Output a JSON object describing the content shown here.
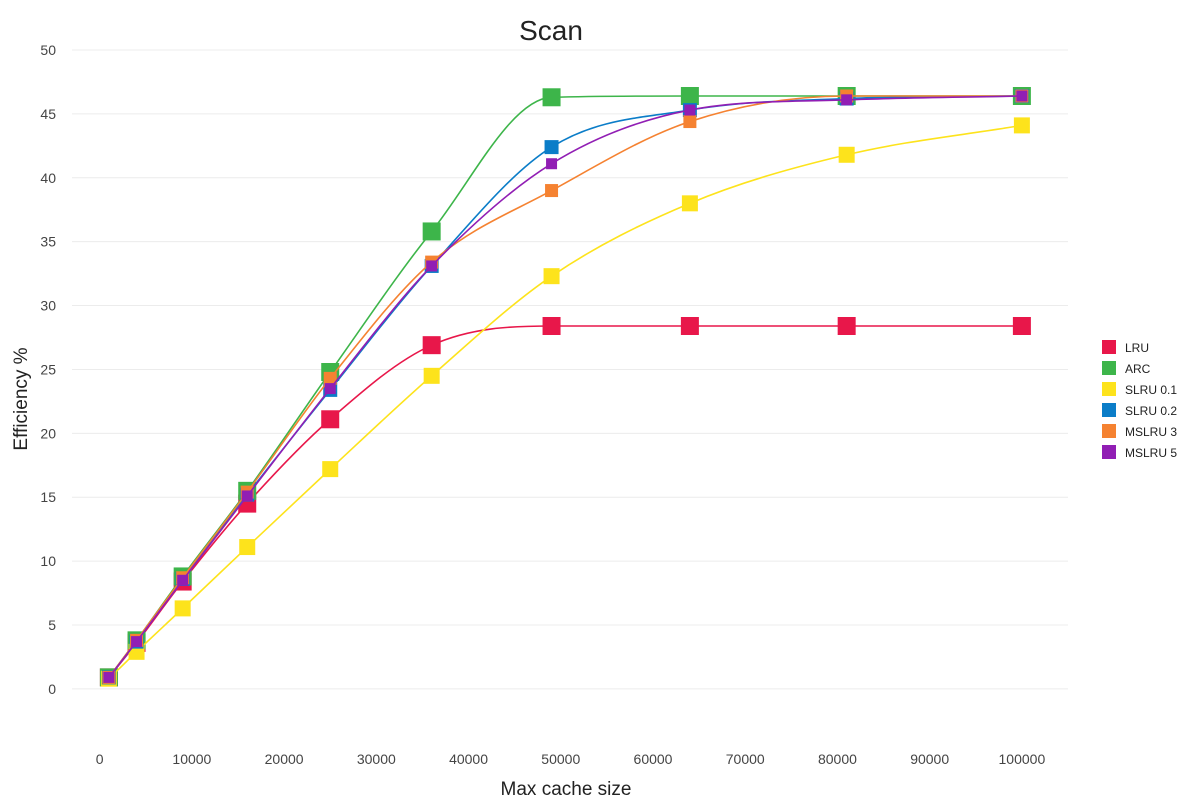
{
  "chart_data": {
    "type": "line",
    "title": "Scan",
    "xlabel": "Max cache size",
    "ylabel": "Efficiency %",
    "xlim": [
      -3000,
      105000
    ],
    "ylim": [
      -4,
      50
    ],
    "x_ticks": [
      0,
      10000,
      20000,
      30000,
      40000,
      50000,
      60000,
      70000,
      80000,
      90000,
      100000
    ],
    "x_tick_labels": [
      "0",
      "10000",
      "20000",
      "30000",
      "40000",
      "50000",
      "60000",
      "70000",
      "80000",
      "90000",
      "100000"
    ],
    "y_ticks": [
      0,
      5,
      10,
      15,
      20,
      25,
      30,
      35,
      40,
      45,
      50
    ],
    "y_tick_labels": [
      "0",
      "5",
      "10",
      "15",
      "20",
      "25",
      "30",
      "35",
      "40",
      "45",
      "50"
    ],
    "grid": "horizontal",
    "legend_position": "right",
    "x": [
      1000,
      4000,
      9000,
      16000,
      25000,
      36000,
      49000,
      64000,
      81000,
      100000
    ],
    "series": [
      {
        "name": "LRU",
        "color": "#e8174a",
        "values": [
          0.9,
          3.6,
          8.4,
          14.5,
          21.1,
          26.9,
          28.4,
          28.4,
          28.4,
          28.4
        ]
      },
      {
        "name": "ARC",
        "color": "#3db54a",
        "values": [
          0.9,
          3.8,
          8.8,
          15.5,
          24.8,
          35.8,
          46.3,
          46.4,
          46.4,
          46.4
        ]
      },
      {
        "name": "SLRU 0.1",
        "color": "#fde31c",
        "values": [
          0.8,
          2.9,
          6.3,
          11.1,
          17.2,
          24.5,
          32.3,
          38.0,
          41.8,
          44.1
        ]
      },
      {
        "name": "SLRU 0.2",
        "color": "#0b7dc8",
        "values": [
          0.9,
          3.7,
          8.6,
          15.2,
          23.4,
          33.1,
          42.4,
          45.3,
          46.2,
          46.4
        ]
      },
      {
        "name": "MSLRU 3",
        "color": "#f58231",
        "values": [
          0.9,
          3.8,
          8.7,
          15.4,
          24.3,
          33.4,
          39.0,
          44.4,
          46.4,
          46.4
        ]
      },
      {
        "name": "MSLRU 5",
        "color": "#911eb4",
        "values": [
          0.9,
          3.7,
          8.5,
          15.1,
          23.5,
          33.1,
          41.1,
          45.3,
          46.1,
          46.4
        ]
      }
    ],
    "marker_sizes": [
      18,
      18,
      16,
      14,
      13,
      11
    ]
  }
}
